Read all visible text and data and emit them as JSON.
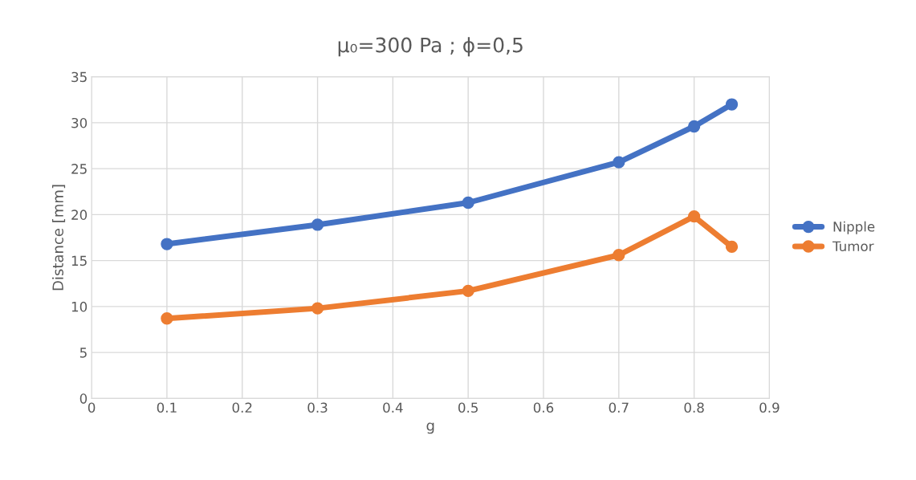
{
  "chart_data": {
    "type": "line",
    "title": "μ₀=300 Pa ; ϕ=0,5",
    "xlabel": "g",
    "ylabel": "Distance [mm]",
    "x": [
      0.1,
      0.3,
      0.5,
      0.7,
      0.8,
      0.85
    ],
    "series": [
      {
        "name": "Nipple",
        "color": "#4472c4",
        "values": [
          16.8,
          18.9,
          21.3,
          25.7,
          29.6,
          32.0
        ]
      },
      {
        "name": "Tumor",
        "color": "#ed7d31",
        "values": [
          8.7,
          9.8,
          11.7,
          15.6,
          19.8,
          16.5
        ]
      }
    ],
    "xlim": [
      0,
      0.9
    ],
    "xticks": [
      {
        "value": 0,
        "label": "0"
      },
      0.1,
      0.2,
      0.3,
      0.4,
      0.5,
      0.6,
      0.7,
      0.8,
      0.9
    ],
    "ylim": [
      0,
      35
    ],
    "yticks": [
      0,
      5,
      10,
      15,
      20,
      25,
      30,
      35
    ],
    "grid": true,
    "legend": "right",
    "marker": "circle",
    "line_style": "solid"
  }
}
